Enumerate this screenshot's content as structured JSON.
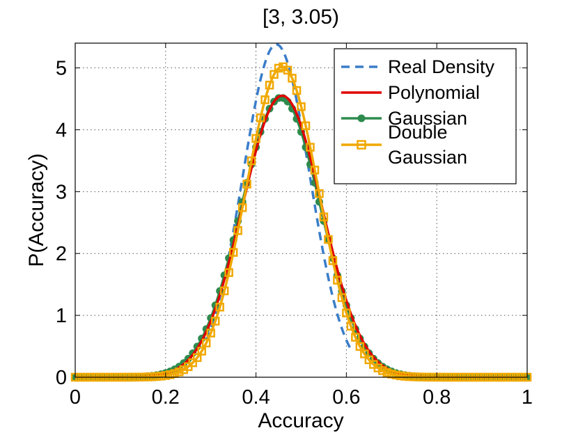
{
  "chart_data": {
    "type": "line",
    "title": "[3, 3.05)",
    "xlabel": "Accuracy",
    "ylabel": "P(Accuracy)",
    "xlim": [
      0,
      1
    ],
    "ylim": [
      0,
      5.4
    ],
    "xticks": [
      0,
      0.2,
      0.4,
      0.6,
      0.8,
      1
    ],
    "xtick_labels": [
      "0",
      "0.2",
      "0.4",
      "0.6",
      "0.8",
      "1"
    ],
    "yticks": [
      0,
      1,
      2,
      3,
      4,
      5
    ],
    "ytick_labels": [
      "0",
      "1",
      "2",
      "3",
      "4",
      "5"
    ],
    "grid": true,
    "legend_position": "top-right",
    "series": [
      {
        "name": "Real Density",
        "style": "dashed",
        "color": "#3a7dc9",
        "model": "gaussian",
        "mean": 0.445,
        "sd": 0.074,
        "peak": 5.38,
        "x_range": [
          0.29,
          0.61
        ]
      },
      {
        "name": "Polynomial",
        "style": "solid",
        "color": "#e00000",
        "model": "gaussian",
        "mean": 0.458,
        "sd": 0.088,
        "peak": 4.55,
        "x_range": [
          0,
          1
        ]
      },
      {
        "name": "Gaussian",
        "style": "solid",
        "marker": "circle",
        "color": "#2e8b4e",
        "model": "gaussian",
        "mean": 0.455,
        "sd": 0.088,
        "peak": 4.52,
        "x_range": [
          0,
          1
        ]
      },
      {
        "name": "Double\nGaussian",
        "legend_lines": [
          "Double",
          "Gaussian"
        ],
        "style": "solid",
        "marker": "square",
        "color": "#f0a800",
        "model": "gaussian",
        "mean": 0.458,
        "sd": 0.08,
        "peak": 5.02,
        "x_range": [
          0,
          1
        ]
      }
    ]
  }
}
